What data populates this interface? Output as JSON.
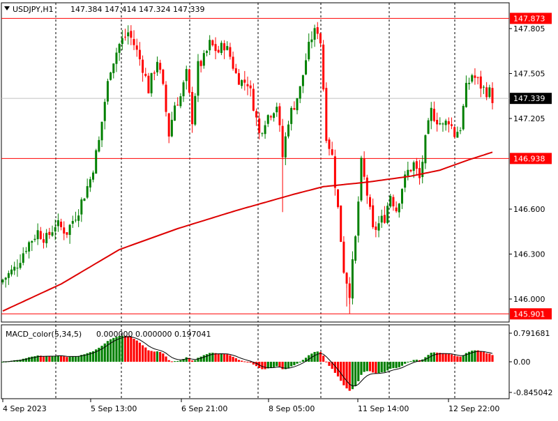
{
  "header": {
    "symbol": "USDJPY,H1",
    "prices": "147.384 147.414 147.324 147.339",
    "dropdown_icon": "triangle-down-icon"
  },
  "indicator": {
    "label": "MACD_color(5,34,5)",
    "values": "0.000000 0.000000 0.197041"
  },
  "colors": {
    "bull": "#008000",
    "bear": "#ff0000",
    "ma": "#dd0000",
    "hline": "#ff0000",
    "price_tag_bg": "#000000",
    "hline_tag_bg": "#ff0000",
    "grid_separator": "#000000"
  },
  "chart_data": [
    {
      "type": "candlestick",
      "title": "USDJPY,H1",
      "ylim": [
        145.9,
        147.9
      ],
      "y_ticks": [
        "147.805",
        "147.505",
        "147.205",
        "146.600",
        "146.300",
        "146.000"
      ],
      "current_price": "147.339",
      "horizontal_lines": [
        {
          "label": "147.873",
          "value": 147.873
        },
        {
          "label": "146.938",
          "value": 146.938
        },
        {
          "label": "145.901",
          "value": 145.901
        }
      ],
      "x_ticks": [
        "4 Sep 2023",
        "5 Sep 13:00",
        "6 Sep 21:00",
        "8 Sep 05:00",
        "11 Sep 14:00",
        "12 Sep 22:00"
      ],
      "close_path": [
        [
          0,
          146.13
        ],
        [
          4,
          146.2
        ],
        [
          8,
          146.35
        ],
        [
          12,
          146.45
        ],
        [
          15,
          146.4
        ],
        [
          18,
          146.5
        ],
        [
          22,
          146.45
        ],
        [
          26,
          146.6
        ],
        [
          30,
          146.8
        ],
        [
          33,
          147.05
        ],
        [
          35,
          147.32
        ],
        [
          37,
          147.55
        ],
        [
          40,
          147.7
        ],
        [
          43,
          147.78
        ],
        [
          45,
          147.7
        ],
        [
          48,
          147.55
        ],
        [
          50,
          147.4
        ],
        [
          53,
          147.6
        ],
        [
          55,
          147.4
        ],
        [
          57,
          147.1
        ],
        [
          59,
          147.3
        ],
        [
          61,
          147.35
        ],
        [
          63,
          147.5
        ],
        [
          65,
          147.2
        ],
        [
          67,
          147.55
        ],
        [
          69,
          147.6
        ],
        [
          71,
          147.7
        ],
        [
          74,
          147.65
        ],
        [
          76,
          147.7
        ],
        [
          78,
          147.62
        ],
        [
          80,
          147.5
        ],
        [
          82,
          147.45
        ],
        [
          84,
          147.45
        ],
        [
          86,
          147.3
        ],
        [
          88,
          147.1
        ],
        [
          90,
          147.2
        ],
        [
          92,
          147.25
        ],
        [
          94,
          147.3
        ],
        [
          96,
          146.95
        ],
        [
          98,
          147.2
        ],
        [
          100,
          147.3
        ],
        [
          102,
          147.4
        ],
        [
          104,
          147.6
        ],
        [
          106,
          147.75
        ],
        [
          108,
          147.8
        ],
        [
          109,
          147.72
        ],
        [
          111,
          147.1
        ],
        [
          113,
          146.95
        ],
        [
          115,
          146.6
        ],
        [
          117,
          146.2
        ],
        [
          119,
          146.05
        ],
        [
          121,
          146.4
        ],
        [
          123,
          146.9
        ],
        [
          125,
          146.7
        ],
        [
          127,
          146.45
        ],
        [
          129,
          146.5
        ],
        [
          131,
          146.55
        ],
        [
          133,
          146.7
        ],
        [
          135,
          146.6
        ],
        [
          137,
          146.75
        ],
        [
          139,
          146.85
        ],
        [
          141,
          146.9
        ],
        [
          143,
          146.8
        ],
        [
          145,
          147.05
        ],
        [
          147,
          147.25
        ],
        [
          149,
          147.2
        ],
        [
          151,
          147.15
        ],
        [
          153,
          147.2
        ],
        [
          155,
          147.1
        ],
        [
          157,
          147.15
        ],
        [
          159,
          147.4
        ],
        [
          161,
          147.5
        ],
        [
          163,
          147.45
        ],
        [
          165,
          147.4
        ],
        [
          167,
          147.38
        ],
        [
          168,
          147.34
        ]
      ],
      "ma_path": [
        [
          0,
          145.92
        ],
        [
          20,
          146.1
        ],
        [
          40,
          146.33
        ],
        [
          60,
          146.47
        ],
        [
          80,
          146.59
        ],
        [
          100,
          146.7
        ],
        [
          110,
          146.75
        ],
        [
          125,
          146.78
        ],
        [
          140,
          146.82
        ],
        [
          150,
          146.86
        ],
        [
          160,
          146.93
        ],
        [
          168,
          146.98
        ]
      ]
    },
    {
      "type": "bar",
      "title": "MACD_color(5,34,5)",
      "ylim": [
        -0.845042,
        0.791681
      ],
      "y_ticks": [
        "0.791681",
        "0.00",
        "-0.845042"
      ],
      "signal_value": 0.197041
    }
  ]
}
